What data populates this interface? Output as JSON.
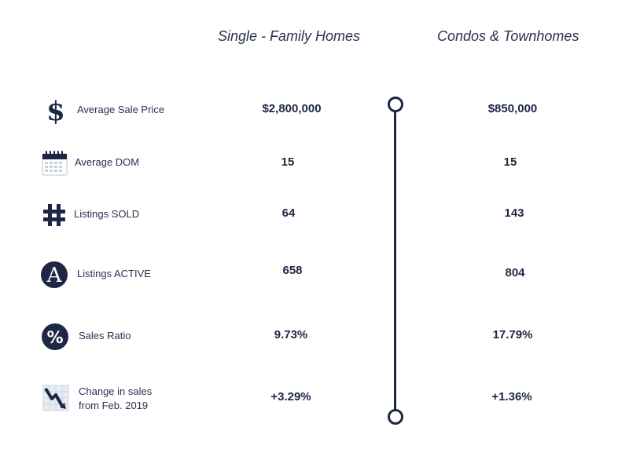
{
  "headers": {
    "single_family": "Single - Family Homes",
    "condos": "Condos & Townhomes"
  },
  "rows": [
    {
      "icon": "dollar-icon",
      "label": "Average Sale Price",
      "single_family": "$2,800,000",
      "condos": "$850,000"
    },
    {
      "icon": "calendar-icon",
      "label": "Average DOM",
      "single_family": "15",
      "condos": "15"
    },
    {
      "icon": "hash-icon",
      "label": "Listings SOLD",
      "single_family": "64",
      "condos": "143"
    },
    {
      "icon": "letter-a-icon",
      "label": "Listings ACTIVE",
      "single_family": "658",
      "condos": "804"
    },
    {
      "icon": "percent-icon",
      "label": "Sales Ratio",
      "single_family": "9.73%",
      "condos": "17.79%"
    },
    {
      "icon": "chart-down-icon",
      "label_line1": "Change in sales",
      "label_line2": "from Feb. 2019",
      "single_family": "+3.29%",
      "condos": "+1.36%"
    }
  ],
  "colors": {
    "navy": "#1e2645",
    "calendar_grid": "#c8d3e0"
  }
}
